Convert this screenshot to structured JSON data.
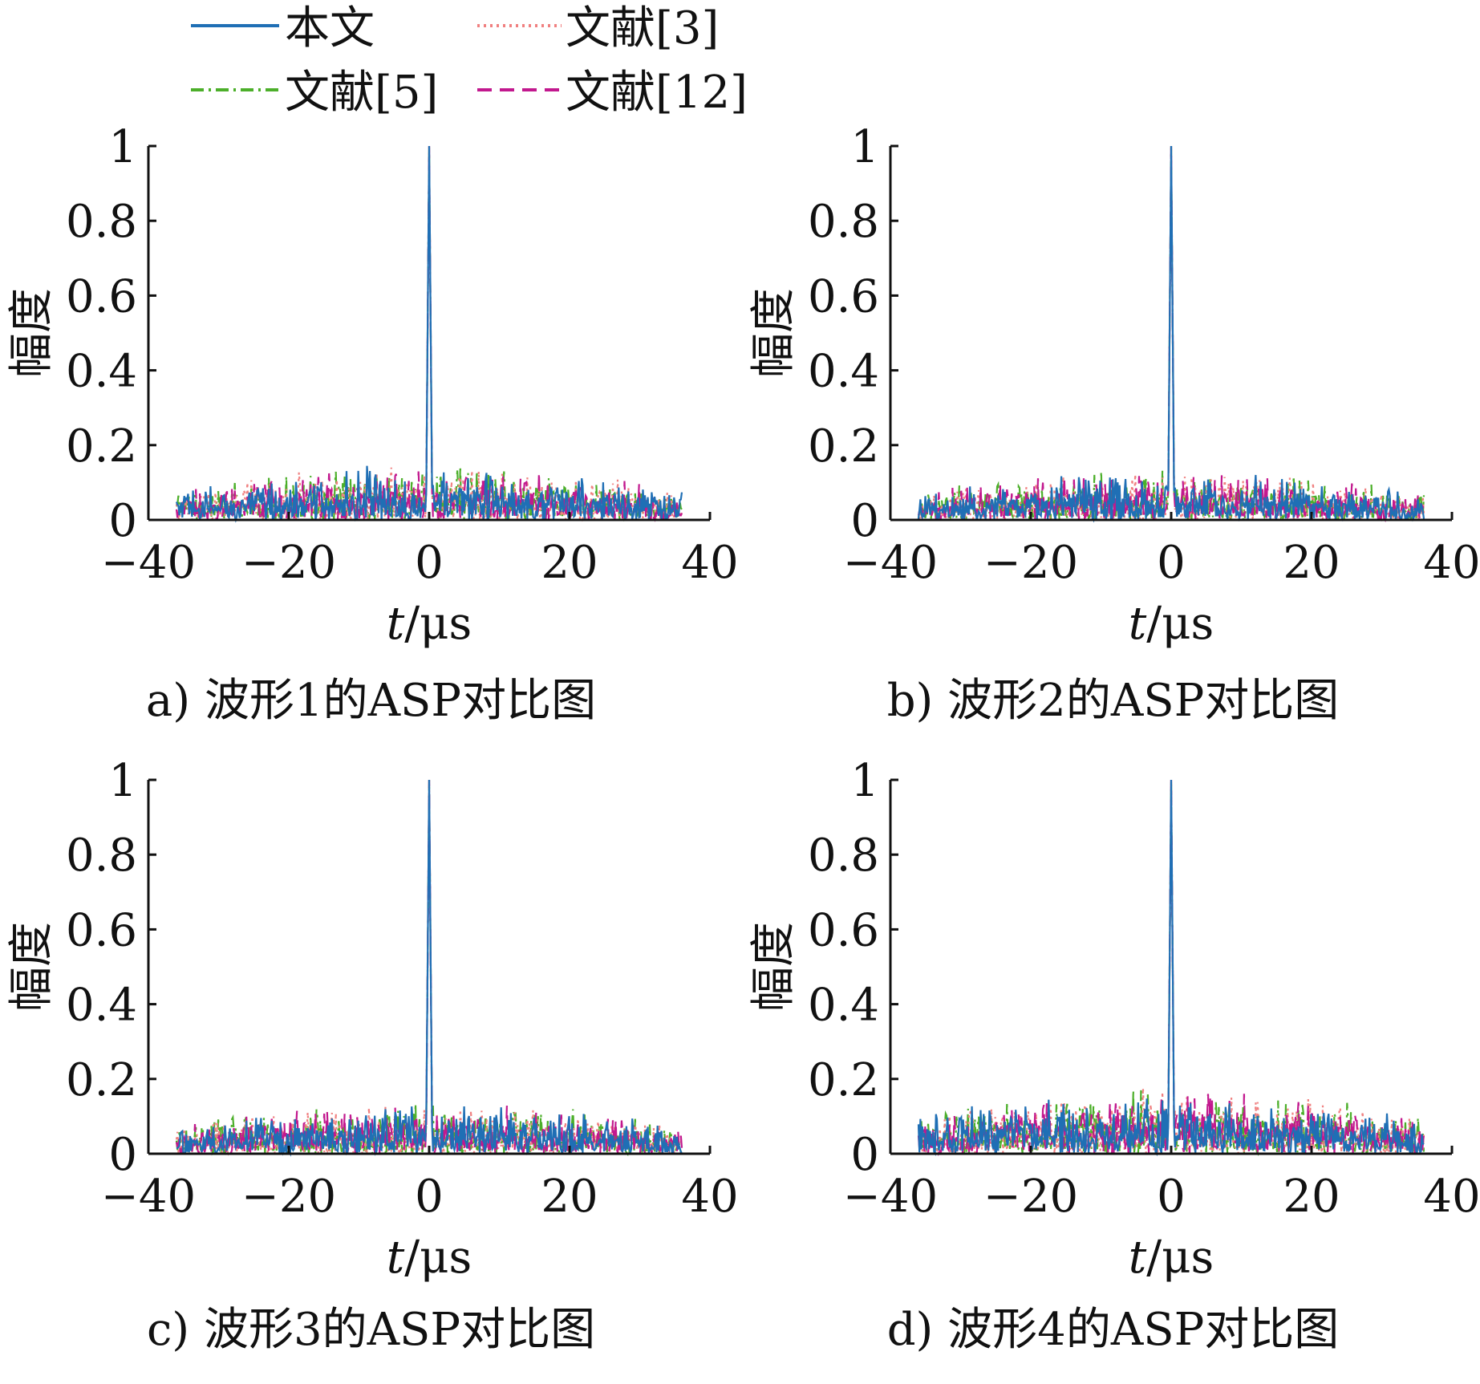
{
  "legend": {
    "items": [
      {
        "label": "本文",
        "color": "#1f6fb5",
        "dash": "solid"
      },
      {
        "label": "文献[3]",
        "color": "#f08080",
        "dash": "dotted"
      },
      {
        "label": "文献[5]",
        "color": "#4caf2a",
        "dash": "dashdot"
      },
      {
        "label": "文献[12]",
        "color": "#c2188e",
        "dash": "dashed"
      }
    ]
  },
  "chart_data": [
    {
      "type": "line",
      "caption": "a) 波形1的ASP对比图",
      "xlabel_italic": "t",
      "xlabel_unit": "/μs",
      "ylabel": "幅度",
      "xlim": [
        -40,
        40
      ],
      "ylim": [
        0,
        1
      ],
      "xticks": [
        "−40",
        "−20",
        "0",
        "20",
        "40"
      ],
      "yticks": [
        "0",
        "0.2",
        "0.4",
        "0.6",
        "0.8",
        "1"
      ],
      "grid": false,
      "sidelobe_peak": 0.15,
      "series": [
        {
          "name": "本文",
          "peak": 1.0
        },
        {
          "name": "文献[3]",
          "peak": 1.0
        },
        {
          "name": "文献[5]",
          "peak": 1.0
        },
        {
          "name": "文献[12]",
          "peak": 1.0
        }
      ]
    },
    {
      "type": "line",
      "caption": "b) 波形2的ASP对比图",
      "xlabel_italic": "t",
      "xlabel_unit": "/μs",
      "ylabel": "幅度",
      "xlim": [
        -40,
        40
      ],
      "ylim": [
        0,
        1
      ],
      "xticks": [
        "−40",
        "−20",
        "0",
        "20",
        "40"
      ],
      "yticks": [
        "0",
        "0.2",
        "0.4",
        "0.6",
        "0.8",
        "1"
      ],
      "grid": false,
      "sidelobe_peak": 0.14,
      "series": [
        {
          "name": "本文",
          "peak": 1.0
        },
        {
          "name": "文献[3]",
          "peak": 1.0
        },
        {
          "name": "文献[5]",
          "peak": 1.0
        },
        {
          "name": "文献[12]",
          "peak": 1.0
        }
      ]
    },
    {
      "type": "line",
      "caption": "c) 波形3的ASP对比图",
      "xlabel_italic": "t",
      "xlabel_unit": "/μs",
      "ylabel": "幅度",
      "xlim": [
        -40,
        40
      ],
      "ylim": [
        0,
        1
      ],
      "xticks": [
        "−40",
        "−20",
        "0",
        "20",
        "40"
      ],
      "yticks": [
        "0",
        "0.2",
        "0.4",
        "0.6",
        "0.8",
        "1"
      ],
      "grid": false,
      "sidelobe_peak": 0.14,
      "series": [
        {
          "name": "本文",
          "peak": 1.0
        },
        {
          "name": "文献[3]",
          "peak": 1.0
        },
        {
          "name": "文献[5]",
          "peak": 1.0
        },
        {
          "name": "文献[12]",
          "peak": 1.0
        }
      ]
    },
    {
      "type": "line",
      "caption": "d) 波形4的ASP对比图",
      "xlabel_italic": "t",
      "xlabel_unit": "/μs",
      "ylabel": "幅度",
      "xlim": [
        -40,
        40
      ],
      "ylim": [
        0,
        1
      ],
      "xticks": [
        "−40",
        "−20",
        "0",
        "20",
        "40"
      ],
      "yticks": [
        "0",
        "0.2",
        "0.4",
        "0.6",
        "0.8",
        "1"
      ],
      "grid": false,
      "sidelobe_peak": 0.18,
      "series": [
        {
          "name": "本文",
          "peak": 1.0
        },
        {
          "name": "文献[3]",
          "peak": 1.0
        },
        {
          "name": "文献[5]",
          "peak": 1.0
        },
        {
          "name": "文献[12]",
          "peak": 1.0
        }
      ]
    }
  ]
}
